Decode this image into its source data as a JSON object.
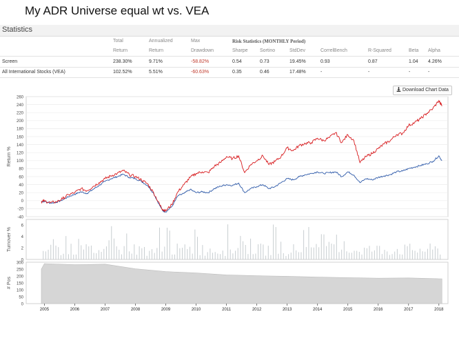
{
  "page_title": "My ADR Universe equal wt vs. VEA",
  "panel_title": "Statistics",
  "stats": {
    "risk_heading": "Risk Statistics (MONTHLY Period)",
    "headers": [
      [
        "Total",
        "Return"
      ],
      [
        "Annualized",
        "Return"
      ],
      [
        "Max",
        "Drawdown"
      ],
      [
        "",
        "Sharpe"
      ],
      [
        "",
        "Sortino"
      ],
      [
        "",
        "StdDev"
      ],
      [
        "",
        "CorrelBench"
      ],
      [
        "",
        "R-Squared"
      ],
      [
        "",
        "Beta"
      ],
      [
        "",
        "Alpha"
      ]
    ],
    "rows": [
      {
        "name": "Screen",
        "values": [
          "238.30%",
          "9.71%",
          "-58.82%",
          "0.54",
          "0.73",
          "19.45%",
          "0.93",
          "0.87",
          "1.04",
          "4.26%"
        ]
      },
      {
        "name": "All International Stocks (VEA)",
        "values": [
          "102.52%",
          "5.51%",
          "-60.63%",
          "0.35",
          "0.46",
          "17.48%",
          "-",
          "-",
          "-",
          "-"
        ]
      }
    ]
  },
  "download_button": "Download Chart Data",
  "download_icon": "download-icon",
  "colors": {
    "screen": "#d7191c",
    "benchmark": "#2c58a8",
    "turnover": "#c7cdd0",
    "positions": "#d6d6d6"
  },
  "chart_data": [
    {
      "type": "line",
      "ylabel": "Return %",
      "ylim": [
        -40,
        260
      ],
      "yticks": [
        "260",
        "240",
        "220",
        "200",
        "180",
        "160",
        "140",
        "120",
        "100",
        "80",
        "60",
        "40",
        "20",
        "0",
        "-20",
        "-40"
      ],
      "x": [
        2004.9,
        2005.0,
        2005.2,
        2005.4,
        2005.6,
        2005.8,
        2006.0,
        2006.2,
        2006.4,
        2006.6,
        2006.8,
        2007.0,
        2007.2,
        2007.4,
        2007.6,
        2007.8,
        2008.0,
        2008.2,
        2008.4,
        2008.6,
        2008.8,
        2008.9,
        2009.0,
        2009.2,
        2009.4,
        2009.6,
        2009.8,
        2010.0,
        2010.2,
        2010.4,
        2010.6,
        2010.8,
        2011.0,
        2011.2,
        2011.4,
        2011.6,
        2011.8,
        2012.0,
        2012.2,
        2012.4,
        2012.6,
        2012.8,
        2013.0,
        2013.2,
        2013.4,
        2013.6,
        2013.8,
        2014.0,
        2014.2,
        2014.4,
        2014.6,
        2014.8,
        2015.0,
        2015.2,
        2015.4,
        2015.6,
        2015.8,
        2016.0,
        2016.2,
        2016.4,
        2016.6,
        2016.8,
        2017.0,
        2017.2,
        2017.4,
        2017.6,
        2017.8,
        2018.0,
        2018.1
      ],
      "series": [
        {
          "name": "Screen",
          "values": [
            -2,
            -1,
            -5,
            -3,
            5,
            15,
            20,
            30,
            25,
            35,
            45,
            55,
            62,
            68,
            75,
            65,
            60,
            52,
            42,
            20,
            -10,
            -22,
            -25,
            -10,
            22,
            40,
            58,
            68,
            72,
            70,
            86,
            95,
            110,
            105,
            112,
            70,
            90,
            100,
            112,
            90,
            98,
            110,
            132,
            125,
            138,
            143,
            145,
            156,
            150,
            158,
            170,
            145,
            165,
            150,
            95,
            110,
            118,
            130,
            142,
            150,
            165,
            168,
            188,
            195,
            205,
            218,
            230,
            250,
            236
          ]
        },
        {
          "name": "All International Stocks (VEA)",
          "values": [
            -2,
            -2,
            -6,
            -4,
            2,
            10,
            16,
            22,
            18,
            28,
            38,
            48,
            55,
            60,
            66,
            58,
            55,
            48,
            38,
            18,
            -12,
            -25,
            -28,
            -15,
            12,
            18,
            28,
            20,
            22,
            20,
            30,
            36,
            40,
            38,
            44,
            20,
            30,
            35,
            40,
            30,
            35,
            45,
            55,
            52,
            60,
            65,
            68,
            72,
            68,
            70,
            72,
            60,
            72,
            64,
            45,
            55,
            52,
            58,
            62,
            65,
            72,
            74,
            80,
            84,
            88,
            92,
            98,
            112,
            100
          ]
        }
      ]
    },
    {
      "type": "bar",
      "ylabel": "Turnover %",
      "ylim": [
        0,
        7
      ],
      "yticks": [
        "6",
        "4",
        "2",
        "0"
      ],
      "note": "monthly turnover spikes, typical value between 1 and 3"
    },
    {
      "type": "area",
      "ylabel": "# Pos",
      "ylim": [
        0,
        300
      ],
      "yticks": [
        "300",
        "250",
        "200",
        "150",
        "100",
        "50",
        "0"
      ],
      "x": [
        2004.9,
        2005.0,
        2006.0,
        2007.0,
        2008.0,
        2009.0,
        2010.0,
        2011.0,
        2012.0,
        2013.0,
        2014.0,
        2015.0,
        2016.0,
        2017.0,
        2018.0,
        2018.1
      ],
      "values": [
        250,
        290,
        282,
        286,
        252,
        232,
        222,
        208,
        202,
        198,
        192,
        188,
        184,
        186,
        180,
        180
      ]
    }
  ],
  "x_axis": {
    "ticks": [
      "2005",
      "2006",
      "2007",
      "2008",
      "2009",
      "2010",
      "2011",
      "2012",
      "2013",
      "2014",
      "2015",
      "2016",
      "2017",
      "2018"
    ],
    "range": [
      2004.4,
      2018.3
    ]
  }
}
